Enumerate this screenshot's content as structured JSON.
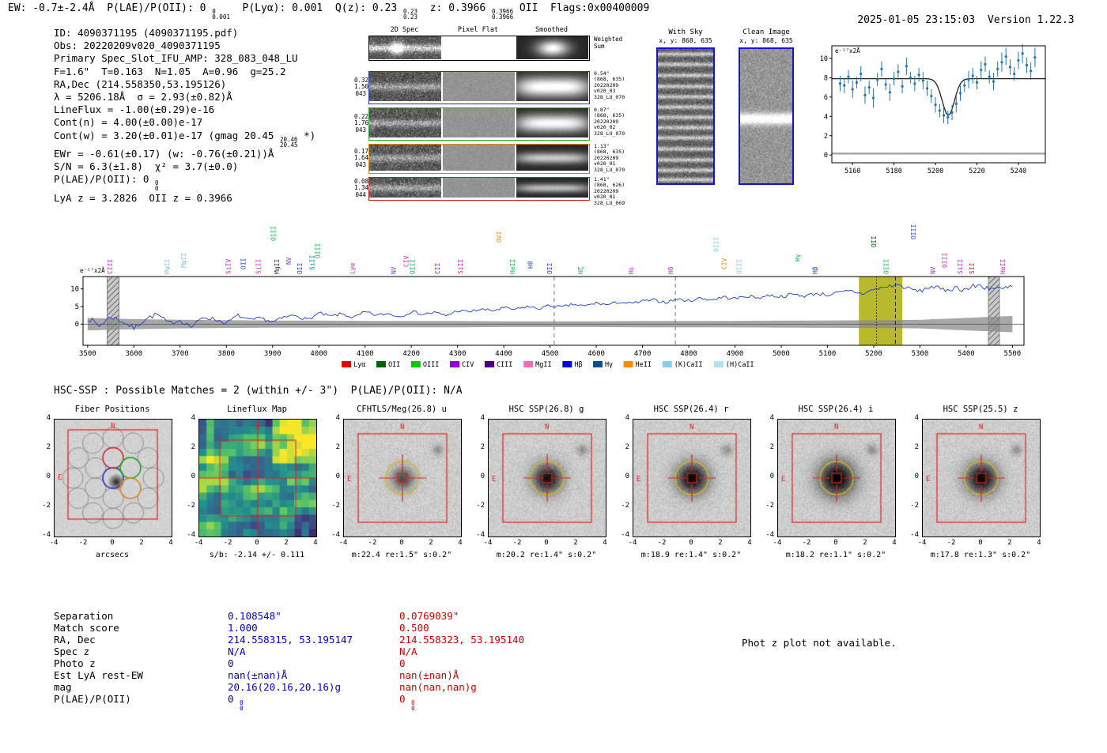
{
  "header": {
    "left_segs": [
      {
        "t": "EW: -0.7±-2.4Å  P(LAE)/P(OII): 0 "
      },
      {
        "s": [
          "0",
          "0.001"
        ]
      },
      {
        "t": "  P(Lyα): 0.001  Q(z): 0.23 "
      },
      {
        "s": [
          "0.23",
          "0.23"
        ]
      },
      {
        "t": "  z: 0.3966 "
      },
      {
        "s": [
          "0.3966",
          "0.3966"
        ]
      },
      {
        "t": " OII  Flags:0x00400009"
      }
    ],
    "timestamp": "2025-01-05 23:15:03",
    "version": "Version 1.22.3"
  },
  "info": {
    "lines": [
      [
        {
          "t": "ID: 4090371195 (4090371195.pdf)"
        }
      ],
      [
        {
          "t": "Obs: 20220209v020_4090371195"
        }
      ],
      [
        {
          "t": "Primary Spec_Slot_IFU_AMP: 328_083_048_LU"
        }
      ],
      [
        {
          "t": "F=1.6\"  T=0.163  N=1.05  A=0.96  g=25.2"
        }
      ],
      [
        {
          "t": "RA,Dec (214.558350,53.195126)"
        }
      ],
      [
        {
          "t": "λ = 5206.18Å  σ = 2.93(±0.82)Å"
        }
      ],
      [
        {
          "t": "LineFlux = -1.00(±0.29)e-16"
        }
      ],
      [
        {
          "t": "Cont(n) = 4.00(±0.00)e-17"
        }
      ],
      [
        {
          "t": "Cont(w) = 3.20(±0.01)e-17 (gmag 20.45 "
        },
        {
          "s": [
            "20.46",
            "20.45"
          ]
        },
        {
          "t": " *)"
        }
      ],
      [
        {
          "t": "EWr = -0.61(±0.17) (w: -0.76(±0.21))Å"
        }
      ],
      [
        {
          "t": "S/N = 6.3(±1.8)  χ² = 3.7(±0.0)"
        }
      ],
      [
        {
          "t": "P(LAE)/P(OII): 0 "
        },
        {
          "s": [
            "0",
            "0"
          ]
        }
      ],
      [
        {
          "t": "LyA z = 3.2826  OII z = 0.3966"
        }
      ]
    ]
  },
  "spec2d": {
    "col_headers": [
      "2D Spec",
      "Pixel Flat",
      "Smoothed"
    ],
    "weighted_sum_label": "Weighted\nSum",
    "rows": [
      {
        "left": [
          "0.32",
          "1.50",
          "043"
        ],
        "right": [
          "0.54\"",
          "(868, 635)",
          "20220209",
          "v020_03",
          "328_LU_070"
        ],
        "border": "#2233bb"
      },
      {
        "left": [
          "0.22",
          "1.76",
          "043"
        ],
        "right": [
          "0.87\"",
          "(868, 635)",
          "20220209",
          "v020_02",
          "328_LU_070"
        ],
        "border": "#22aa33"
      },
      {
        "left": [
          "0.17",
          "1.64",
          "043"
        ],
        "right": [
          "1.13\"",
          "(868, 635)",
          "20220209",
          "v020_01",
          "328_LU_070"
        ],
        "border": "#dd8800"
      },
      {
        "left": [
          "0.08",
          "1.34",
          "044"
        ],
        "right": [
          "1.41\"",
          "(868, 626)",
          "20220209",
          "v020_01",
          "328_LU_069"
        ],
        "border": "#cc2211"
      }
    ]
  },
  "postage": {
    "with_sky": {
      "title": "With Sky",
      "coords": "x, y: 868, 635"
    },
    "clean": {
      "title": "Clean Image",
      "coords": "x, y: 868, 635"
    }
  },
  "chart_data": [
    {
      "id": "fit_plot",
      "type": "scatter",
      "units_note": "e⁻¹⁷x2Å",
      "xlim": [
        5150,
        5253
      ],
      "ylim": [
        -0.8,
        11.3
      ],
      "xticks": [
        5160,
        5180,
        5200,
        5220,
        5240
      ],
      "yticks": [
        0,
        2,
        4,
        6,
        8,
        10
      ],
      "points": [
        [
          5154,
          7.4,
          0.8
        ],
        [
          5156,
          7.2,
          0.8
        ],
        [
          5158,
          8.1,
          0.7
        ],
        [
          5160,
          6.8,
          0.9
        ],
        [
          5162,
          7.5,
          0.6
        ],
        [
          5164,
          8.4,
          0.8
        ],
        [
          5166,
          6.2,
          0.9
        ],
        [
          5168,
          7.0,
          0.7
        ],
        [
          5170,
          5.9,
          1.0
        ],
        [
          5172,
          7.8,
          0.7
        ],
        [
          5174,
          8.9,
          0.8
        ],
        [
          5176,
          7.3,
          0.6
        ],
        [
          5178,
          6.5,
          0.9
        ],
        [
          5180,
          7.9,
          0.7
        ],
        [
          5182,
          8.6,
          0.8
        ],
        [
          5184,
          7.1,
          0.7
        ],
        [
          5186,
          9.2,
          0.9
        ],
        [
          5188,
          8.0,
          0.6
        ],
        [
          5190,
          7.4,
          0.8
        ],
        [
          5192,
          8.3,
          0.7
        ],
        [
          5194,
          7.7,
          0.9
        ],
        [
          5196,
          6.9,
          0.8
        ],
        [
          5198,
          6.1,
          0.7
        ],
        [
          5200,
          5.2,
          0.8
        ],
        [
          5202,
          4.6,
          0.7
        ],
        [
          5204,
          4.1,
          0.8
        ],
        [
          5206,
          3.9,
          0.7
        ],
        [
          5208,
          4.4,
          0.8
        ],
        [
          5210,
          5.3,
          0.9
        ],
        [
          5212,
          6.4,
          0.8
        ],
        [
          5214,
          7.2,
          0.7
        ],
        [
          5216,
          7.8,
          0.9
        ],
        [
          5218,
          8.2,
          0.8
        ],
        [
          5220,
          7.5,
          0.7
        ],
        [
          5222,
          8.8,
          0.9
        ],
        [
          5224,
          9.4,
          0.8
        ],
        [
          5226,
          8.1,
          0.7
        ],
        [
          5228,
          7.6,
          0.9
        ],
        [
          5230,
          8.9,
          0.8
        ],
        [
          5232,
          9.6,
          1.0
        ],
        [
          5234,
          10.2,
          0.9
        ],
        [
          5236,
          9.1,
          0.8
        ],
        [
          5238,
          8.4,
          0.7
        ],
        [
          5240,
          9.8,
          0.9
        ],
        [
          5242,
          10.5,
          1.0
        ],
        [
          5244,
          9.3,
          0.8
        ],
        [
          5246,
          8.7,
          0.9
        ],
        [
          5248,
          10.1,
          1.0
        ]
      ],
      "fit": {
        "continuum": 7.9,
        "center": 5206.2,
        "sigma": 2.93,
        "depth": 3.8
      }
    },
    {
      "id": "main_spectrum",
      "type": "line",
      "units_note": "e⁻¹⁷x2Å",
      "xlim": [
        3490,
        5525
      ],
      "ylim": [
        -6,
        13.5
      ],
      "xticks": [
        3500,
        3600,
        3700,
        3800,
        3900,
        4000,
        4100,
        4200,
        4300,
        4400,
        4500,
        4600,
        4700,
        4800,
        4900,
        5000,
        5100,
        5200,
        5300,
        5400,
        5500
      ],
      "yticks": [
        0,
        5,
        10
      ],
      "flux_x0": 3500,
      "flux_dx": 25,
      "flux": [
        1.8,
        -0.5,
        2.2,
        0.8,
        -1.2,
        1.5,
        2.8,
        0.3,
        1.1,
        -0.8,
        2.0,
        1.4,
        0.2,
        2.5,
        1.0,
        1.7,
        0.6,
        1.9,
        2.6,
        1.2,
        3.1,
        2.2,
        2.9,
        1.8,
        3.4,
        2.5,
        3.0,
        2.1,
        3.6,
        2.8,
        3.3,
        2.4,
        3.8,
        3.5,
        4.2,
        3.8,
        4.6,
        4.1,
        5.0,
        4.4,
        5.3,
        4.8,
        5.6,
        5.1,
        6.0,
        5.5,
        6.3,
        5.8,
        6.5,
        6.8,
        6.2,
        7.1,
        6.6,
        7.4,
        6.9,
        7.7,
        7.2,
        8.0,
        7.5,
        8.2,
        7.8,
        8.5,
        8.0,
        8.7,
        8.3,
        8.9,
        9.4,
        8.6,
        9.8,
        10.5,
        11.2,
        10.1,
        9.3,
        10.8,
        9.6,
        10.3,
        9.9,
        11.0,
        10.4,
        9.7,
        10.6
      ],
      "err": [
        1.6,
        1.3,
        1.1,
        1.0,
        0.9,
        0.9,
        0.85,
        0.8,
        0.8,
        0.75,
        0.75,
        0.75,
        0.8,
        0.8,
        0.85,
        0.9,
        0.95,
        1.0,
        1.1,
        1.6,
        2.1
      ],
      "sky_bars": [
        [
          3542,
          3568
        ],
        [
          5448,
          5472
        ]
      ],
      "highlight_band": [
        5168,
        5262
      ],
      "marker_lines": {
        "dashed_gray": [
          4509,
          4771
        ],
        "dotted": [
          5206
        ],
        "dashed_dark": [
          5247
        ]
      },
      "line_labels": [
        {
          "n": "CIII",
          "wl": 3553,
          "c": "#cc22cc",
          "lift": 0
        },
        {
          "n": "MgII",
          "wl": 3676,
          "c": "#7fc8e8",
          "lift": 0
        },
        {
          "n": "MgII",
          "wl": 3712,
          "c": "#7fc8e8",
          "lift": 8
        },
        {
          "n": "SiIV",
          "wl": 3809,
          "c": "#cc22cc",
          "lift": 0
        },
        {
          "n": "OII",
          "wl": 3841,
          "c": "#2244cc",
          "lift": 6
        },
        {
          "n": "SiII",
          "wl": 3874,
          "c": "#cc22cc",
          "lift": 0
        },
        {
          "n": "OIII",
          "wl": 3906,
          "c": "#00bb44",
          "lift": 42
        },
        {
          "n": "MgII",
          "wl": 3914,
          "c": "#333333",
          "lift": 0
        },
        {
          "n": "NV",
          "wl": 3940,
          "c": "#8833cc",
          "lift": 12
        },
        {
          "n": "OII",
          "wl": 3964,
          "c": "#2244cc",
          "lift": 0
        },
        {
          "n": "SiII",
          "wl": 3990,
          "c": "#008b8b",
          "lift": 5
        },
        {
          "n": "OIII",
          "wl": 4002,
          "c": "#00bb44",
          "lift": 20
        },
        {
          "n": "Lyα",
          "wl": 4077,
          "c": "#cc22cc",
          "lift": 0
        },
        {
          "n": "NV",
          "wl": 4166,
          "c": "#8833cc",
          "lift": 0
        },
        {
          "n": "CIV",
          "wl": 4194,
          "c": "#cc22cc",
          "lift": 9
        },
        {
          "n": "OIII",
          "wl": 4207,
          "c": "#00bb44",
          "lift": 0
        },
        {
          "n": "CII",
          "wl": 4261,
          "c": "#8833cc",
          "lift": 0
        },
        {
          "n": "SiII",
          "wl": 4311,
          "c": "#cc22cc",
          "lift": 0
        },
        {
          "n": "OVI",
          "wl": 4395,
          "c": "#ee8800",
          "lift": 40
        },
        {
          "n": "HeII",
          "wl": 4424,
          "c": "#00bb44",
          "lift": 0
        },
        {
          "n": "H8",
          "wl": 4462,
          "c": "#2244cc",
          "lift": 7
        },
        {
          "n": "OII",
          "wl": 4504,
          "c": "#2244cc",
          "lift": 0
        },
        {
          "n": "Hζ",
          "wl": 4571,
          "c": "#00bb44",
          "lift": 0
        },
        {
          "n": "Hε",
          "wl": 4680,
          "c": "#cc22cc",
          "lift": 0
        },
        {
          "n": "Hδ",
          "wl": 4766,
          "c": "#cc22cc",
          "lift": 0
        },
        {
          "n": "OIII",
          "wl": 4864,
          "c": "#7fc8e8",
          "lift": 28
        },
        {
          "n": "CIV",
          "wl": 4881,
          "c": "#ee8800",
          "lift": 6
        },
        {
          "n": "OIII",
          "wl": 4914,
          "c": "#7fc8e8",
          "lift": 0
        },
        {
          "n": "Hγ",
          "wl": 5040,
          "c": "#00bb44",
          "lift": 16
        },
        {
          "n": "Hβ",
          "wl": 5078,
          "c": "#2244cc",
          "lift": 0
        },
        {
          "n": "OII",
          "wl": 5205,
          "c": "#006400",
          "lift": 34
        },
        {
          "n": "OIII",
          "wl": 5232,
          "c": "#00bb44",
          "lift": 0
        },
        {
          "n": "OIII",
          "wl": 5291,
          "c": "#2255dd",
          "lift": 44
        },
        {
          "n": "NV",
          "wl": 5333,
          "c": "#8833cc",
          "lift": 0
        },
        {
          "n": "OIII",
          "wl": 5358,
          "c": "#cc22cc",
          "lift": 8
        },
        {
          "n": "SiII",
          "wl": 5392,
          "c": "#cc22cc",
          "lift": 0
        },
        {
          "n": "SII",
          "wl": 5417,
          "c": "#cc2222",
          "lift": 0
        },
        {
          "n": "HeII",
          "wl": 5484,
          "c": "#cc22cc",
          "lift": 0
        }
      ],
      "legend": [
        {
          "label": "Lyα",
          "color": "#e60000"
        },
        {
          "label": "OII",
          "color": "#006400"
        },
        {
          "label": "OIII",
          "color": "#00c800"
        },
        {
          "label": "CIV",
          "color": "#9400d3"
        },
        {
          "label": "CIII",
          "color": "#4b0082"
        },
        {
          "label": "MgII",
          "color": "#ff69b4"
        },
        {
          "label": "Hβ",
          "color": "#0000ff"
        },
        {
          "label": "Hγ",
          "color": "#104e8b"
        },
        {
          "label": "HeII",
          "color": "#ff8c00"
        },
        {
          "label": "(K)CaII",
          "color": "#87ceeb"
        },
        {
          "label": "(H)CaII",
          "color": "#b0e2ee"
        }
      ]
    }
  ],
  "hsc_header": "HSC-SSP : Possible Matches = 2 (within +/- 3\")  P(LAE)/P(OII): N/A",
  "cutouts": {
    "axis_ticks": [
      4,
      2,
      0,
      -2,
      -4
    ],
    "compass": {
      "n": "N",
      "e": "E"
    },
    "panels": [
      {
        "title": "Fiber Positions",
        "caption": "arcsecs",
        "kind": "fibers"
      },
      {
        "title": "Lineflux Map",
        "caption": "s/b: -2.14 +/- 0.111",
        "kind": "heatmap"
      },
      {
        "title": "CFHTLS/Meg(26.8) u",
        "caption": "m:22.4 re:1.5\" s:0.2\"",
        "kind": "img"
      },
      {
        "title": "HSC SSP(26.8) g",
        "caption": "m:20.2 re:1.4\" s:0.2\"",
        "kind": "img"
      },
      {
        "title": "HSC SSP(26.4) r",
        "caption": "m:18.9 re:1.4\" s:0.2\"",
        "kind": "img"
      },
      {
        "title": "HSC SSP(26.4) i",
        "caption": "m:18.2 re:1.1\" s:0.2\"",
        "kind": "img"
      },
      {
        "title": "HSC SSP(25.5) z",
        "caption": "m:17.8 re:1.3\" s:0.2\"",
        "kind": "img"
      }
    ]
  },
  "matches": {
    "row_labels": [
      "Separation",
      "Match score",
      "RA, Dec",
      "Spec z",
      "Photo z",
      "Est LyA rest-EW",
      "mag",
      "P(LAE)/P(OII)"
    ],
    "col1": {
      "color": "#0000cc",
      "rows": [
        [
          {
            "t": "0.108548\""
          }
        ],
        [
          {
            "t": "1.000"
          }
        ],
        [
          {
            "t": "214.558315, 53.195147"
          }
        ],
        [
          {
            "t": "N/A"
          }
        ],
        [
          {
            "t": "0"
          }
        ],
        [
          {
            "t": "nan(±nan)Å"
          }
        ],
        [
          {
            "t": "20.16(20.16,20.16)g"
          }
        ],
        [
          {
            "t": "0 "
          },
          {
            "s": [
              "0",
              "0"
            ]
          }
        ]
      ]
    },
    "col2": {
      "color": "#cc0000",
      "rows": [
        [
          {
            "t": "0.0769039\""
          }
        ],
        [
          {
            "t": "0.500"
          }
        ],
        [
          {
            "t": "214.558323, 53.195140"
          }
        ],
        [
          {
            "t": "N/A"
          }
        ],
        [
          {
            "t": "0"
          }
        ],
        [
          {
            "t": "nan(±nan)Å"
          }
        ],
        [
          {
            "t": "nan(nan,nan)g"
          }
        ],
        [
          {
            "t": "0 "
          },
          {
            "s": [
              "0",
              "0"
            ]
          }
        ]
      ]
    }
  },
  "photz_note": "Phot z plot not available."
}
